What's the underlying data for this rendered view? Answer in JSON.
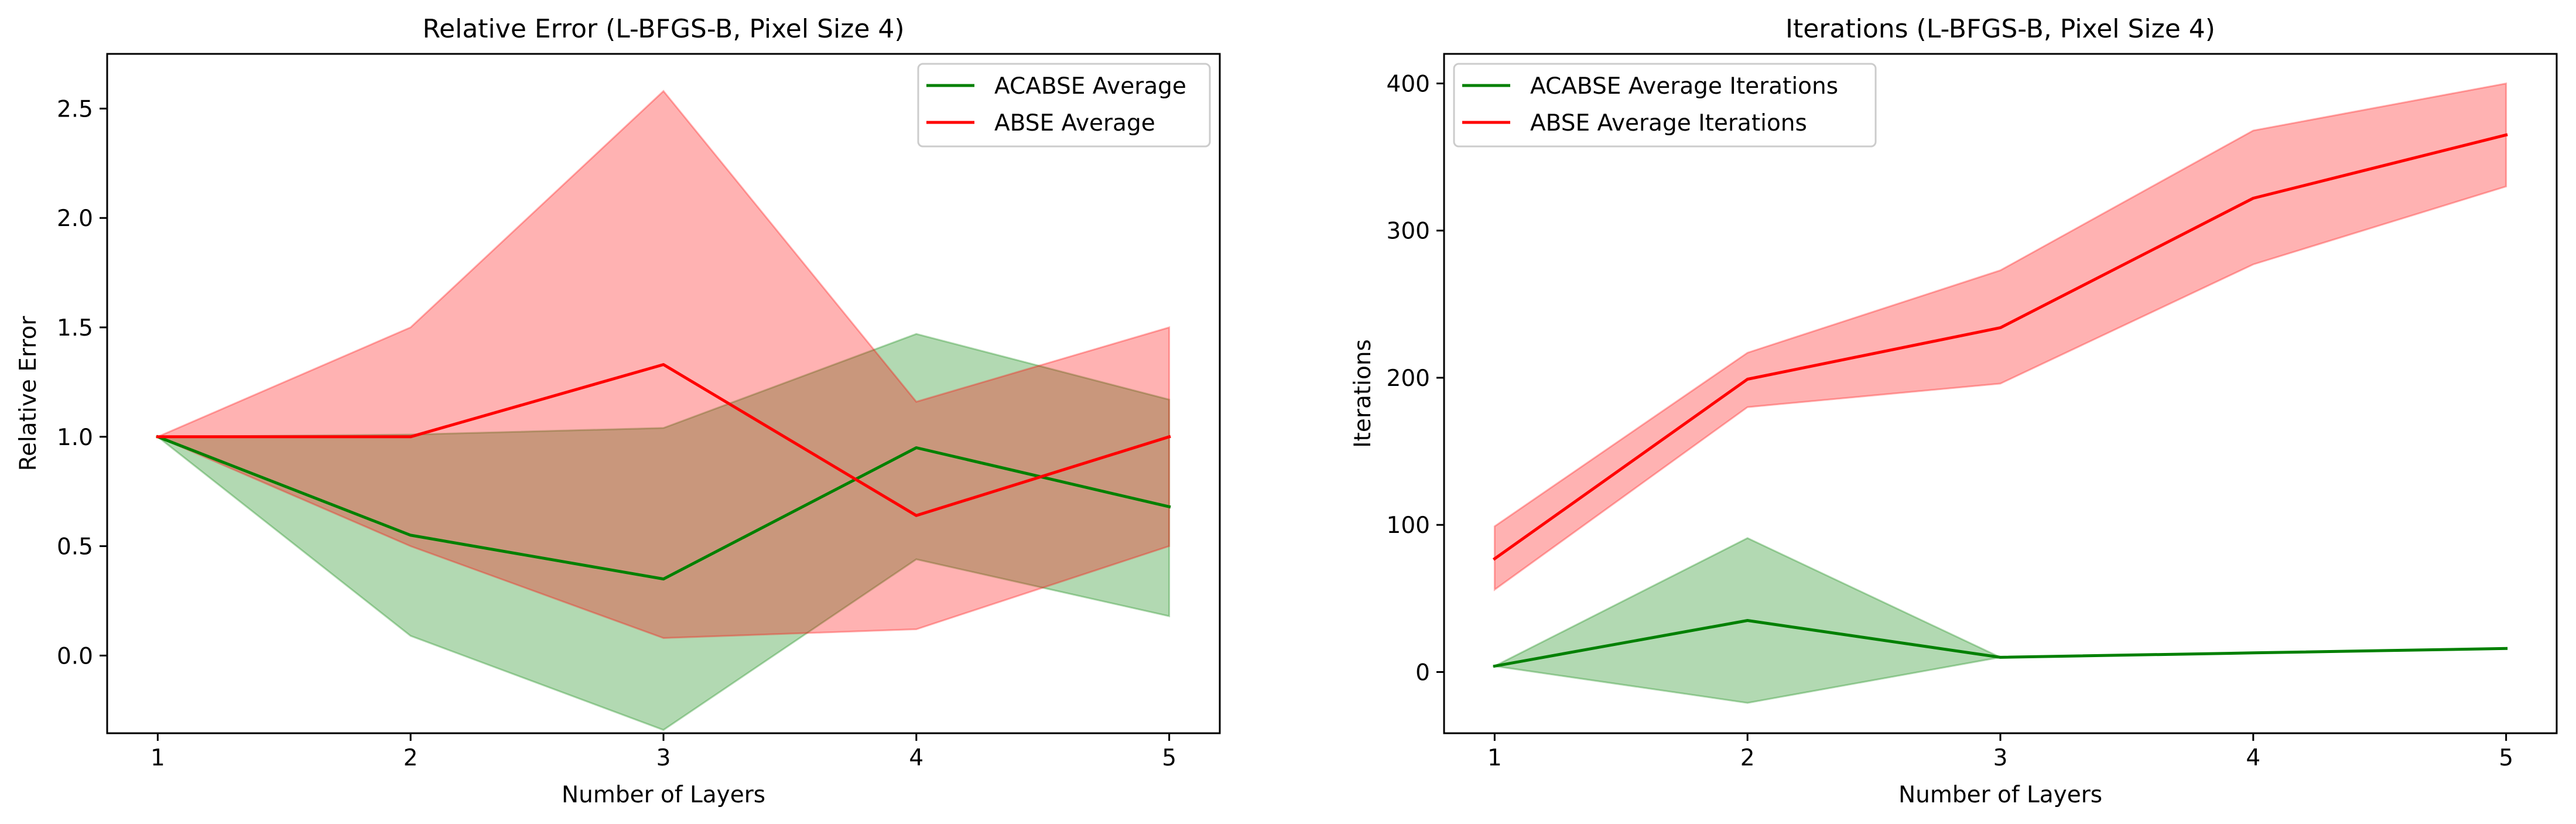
{
  "chart_data": [
    {
      "type": "line",
      "title": "Relative Error (L-BFGS-B, Pixel Size 4)",
      "xlabel": "Number of Layers",
      "ylabel": "Relative Error",
      "x": [
        1,
        2,
        3,
        4,
        5
      ],
      "xlim": [
        0.8,
        5.2
      ],
      "ylim": [
        -0.355,
        2.75
      ],
      "xticks": [
        1,
        2,
        3,
        4,
        5
      ],
      "yticks": [
        0.0,
        0.5,
        1.0,
        1.5,
        2.0,
        2.5
      ],
      "ytick_labels": [
        "0.0",
        "0.5",
        "1.0",
        "1.5",
        "2.0",
        "2.5"
      ],
      "grid": false,
      "legend_position": "upper right",
      "series": [
        {
          "name": "ACABSE Average",
          "color": "#008000",
          "band_color": "#008000",
          "values": [
            1.0,
            0.55,
            0.35,
            0.95,
            0.68
          ],
          "band_lower": [
            1.0,
            0.09,
            -0.34,
            0.44,
            0.18
          ],
          "band_upper": [
            1.0,
            1.01,
            1.04,
            1.47,
            1.17
          ]
        },
        {
          "name": "ABSE Average",
          "color": "#ff0000",
          "band_color": "#ff0000",
          "values": [
            1.0,
            1.0,
            1.33,
            0.64,
            1.0
          ],
          "band_lower": [
            1.0,
            0.5,
            0.08,
            0.12,
            0.5
          ],
          "band_upper": [
            1.0,
            1.5,
            2.58,
            1.16,
            1.5
          ]
        }
      ]
    },
    {
      "type": "line",
      "title": "Iterations (L-BFGS-B, Pixel Size 4)",
      "xlabel": "Number of Layers",
      "ylabel": "Iterations",
      "x": [
        1,
        2,
        3,
        4,
        5
      ],
      "xlim": [
        0.8,
        5.2
      ],
      "ylim": [
        -41.6,
        420.1
      ],
      "xticks": [
        1,
        2,
        3,
        4,
        5
      ],
      "yticks": [
        0,
        100,
        200,
        300,
        400
      ],
      "ytick_labels": [
        "0",
        "100",
        "200",
        "300",
        "400"
      ],
      "grid": false,
      "legend_position": "upper left",
      "series": [
        {
          "name": "ACABSE Average Iterations",
          "color": "#008000",
          "band_color": "#008000",
          "values": [
            4,
            35,
            10,
            13,
            16
          ],
          "band_lower": [
            4,
            -21,
            10,
            13,
            16
          ],
          "band_upper": [
            4,
            91,
            10,
            13,
            16
          ]
        },
        {
          "name": "ABSE Average Iterations",
          "color": "#ff0000",
          "band_color": "#ff0000",
          "values": [
            77,
            199,
            234,
            322,
            365
          ],
          "band_lower": [
            56,
            180,
            196,
            277,
            330
          ],
          "band_upper": [
            99,
            217,
            273,
            368,
            400
          ]
        }
      ]
    }
  ]
}
